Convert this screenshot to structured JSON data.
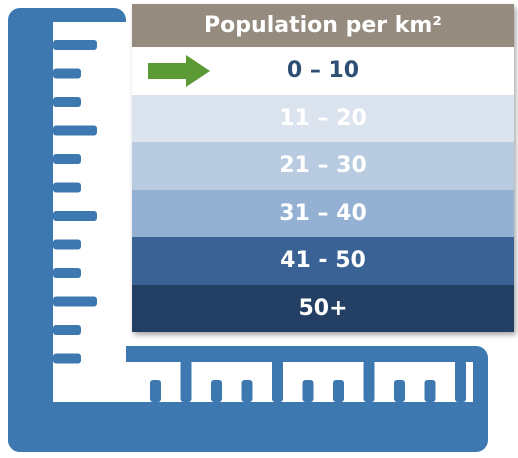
{
  "legend": {
    "header": "Population per km²",
    "header_color": "#958b7e",
    "rows": [
      {
        "label": "0 – 10",
        "bg": "#ffffff",
        "fg": "#2d4f73",
        "selected": true
      },
      {
        "label": "11 – 20",
        "bg": "#dbe4ee",
        "fg": "#ffffff",
        "selected": false
      },
      {
        "label": "21 – 30",
        "bg": "#b8cbe0",
        "fg": "#ffffff",
        "selected": false
      },
      {
        "label": "31 – 40",
        "bg": "#94b0d3",
        "fg": "#ffffff",
        "selected": false
      },
      {
        "label": "41 - 50",
        "bg": "#3a6294",
        "fg": "#ffffff",
        "selected": false
      },
      {
        "label": "50+",
        "bg": "#234064",
        "fg": "#ffffff",
        "selected": false
      }
    ],
    "indicator_icon": "right-arrow-icon",
    "indicator_color": "#5c9a36"
  },
  "ruler": {
    "icon": "set-square-ruler-icon",
    "color": "#3d78b0"
  }
}
